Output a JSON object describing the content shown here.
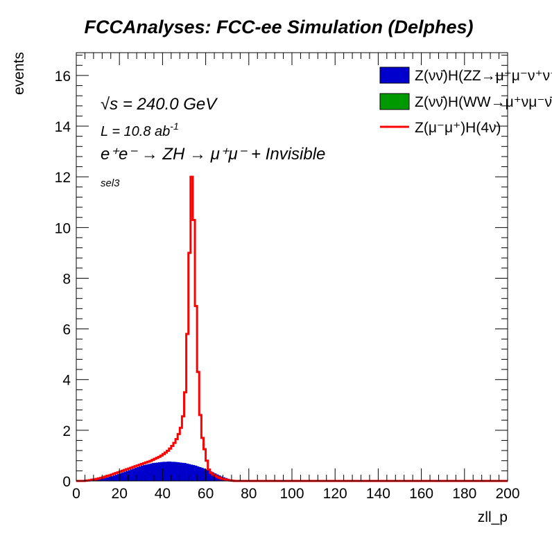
{
  "chart_data": {
    "type": "histogram",
    "title": "FCCAnalyses: FCC-ee Simulation (Delphes)",
    "xlabel": "zll_p",
    "ylabel": "events",
    "xlim": [
      0,
      200
    ],
    "ylim": [
      0,
      16.9
    ],
    "x_ticks": [
      "0",
      "20",
      "40",
      "60",
      "80",
      "100",
      "120",
      "140",
      "160",
      "180",
      "200"
    ],
    "y_ticks": [
      "0",
      "2",
      "4",
      "6",
      "8",
      "10",
      "12",
      "14",
      "16"
    ],
    "bin_width": 1,
    "annotations": {
      "sqrt_s": "√s = 240.0 GeV",
      "lumi_prefix": "L = 10.8 ab",
      "lumi_exp": "-1",
      "process": "e⁺e⁻ → ZH → μ⁺μ⁻ + Invisible",
      "selection": "sel3"
    },
    "legend_position": "top-right",
    "series": [
      {
        "name": "Z(νν̄)H(ZZ→μ⁺μ⁻ν⁺ν⁻)",
        "style": "filled",
        "color": "#0000cc",
        "x_start": 0,
        "values": [
          0,
          0,
          0,
          0,
          0,
          0.01,
          0.02,
          0.03,
          0.04,
          0.05,
          0.07,
          0.09,
          0.1,
          0.12,
          0.14,
          0.16,
          0.18,
          0.21,
          0.24,
          0.27,
          0.3,
          0.33,
          0.36,
          0.39,
          0.42,
          0.45,
          0.48,
          0.51,
          0.54,
          0.57,
          0.6,
          0.62,
          0.64,
          0.66,
          0.68,
          0.7,
          0.71,
          0.72,
          0.73,
          0.74,
          0.75,
          0.75,
          0.76,
          0.76,
          0.75,
          0.75,
          0.74,
          0.73,
          0.72,
          0.71,
          0.7,
          0.68,
          0.66,
          0.64,
          0.62,
          0.6,
          0.57,
          0.54,
          0.51,
          0.48,
          0.45,
          0.41,
          0.37,
          0.33,
          0.29,
          0.25,
          0.21,
          0.17,
          0.14,
          0.11,
          0.08,
          0.06,
          0.04,
          0.03,
          0.02,
          0.01,
          0.01,
          0,
          0,
          0
        ]
      },
      {
        "name": "Z(νν̄)H(WW→μ⁺νμ⁻ν̄)",
        "style": "filled",
        "color": "#009900",
        "x_start": 0,
        "values": [
          0,
          0,
          0,
          0,
          0,
          0,
          0,
          0,
          0,
          0,
          0,
          0,
          0,
          0,
          0,
          0,
          0,
          0,
          0,
          0,
          0,
          0,
          0,
          0,
          0,
          0,
          0,
          0,
          0,
          0,
          0,
          0,
          0,
          0,
          0,
          0,
          0,
          0,
          0,
          0,
          0,
          0,
          0,
          0,
          0,
          0,
          0,
          0,
          0,
          0,
          0,
          0,
          0,
          0,
          0,
          0,
          0,
          0,
          0,
          0,
          0,
          0,
          0,
          0,
          0,
          0,
          0,
          0,
          0,
          0,
          0,
          0,
          0,
          0,
          0,
          0,
          0,
          0,
          0,
          0
        ]
      },
      {
        "name": "Z(μ⁻μ⁺)H(4ν)",
        "style": "line",
        "color": "#ff0000",
        "x_start": 0,
        "values": [
          0,
          0,
          0,
          0,
          0.01,
          0.02,
          0.03,
          0.05,
          0.06,
          0.08,
          0.1,
          0.12,
          0.14,
          0.17,
          0.2,
          0.22,
          0.25,
          0.28,
          0.31,
          0.34,
          0.37,
          0.4,
          0.43,
          0.46,
          0.49,
          0.52,
          0.55,
          0.58,
          0.61,
          0.64,
          0.67,
          0.7,
          0.73,
          0.76,
          0.79,
          0.83,
          0.87,
          0.91,
          0.95,
          1.0,
          1.06,
          1.12,
          1.19,
          1.28,
          1.38,
          1.5,
          1.65,
          1.85,
          2.1,
          2.55,
          3.5,
          5.8,
          9.0,
          12.0,
          10.3,
          6.9,
          4.3,
          2.6,
          1.7,
          1.25,
          0.8,
          0.45,
          0.32,
          0.25,
          0.2,
          0.16,
          0.12,
          0.09,
          0.07,
          0.05,
          0.03,
          0.02,
          0.01,
          0,
          0,
          0,
          0,
          0,
          0,
          0
        ]
      }
    ]
  }
}
